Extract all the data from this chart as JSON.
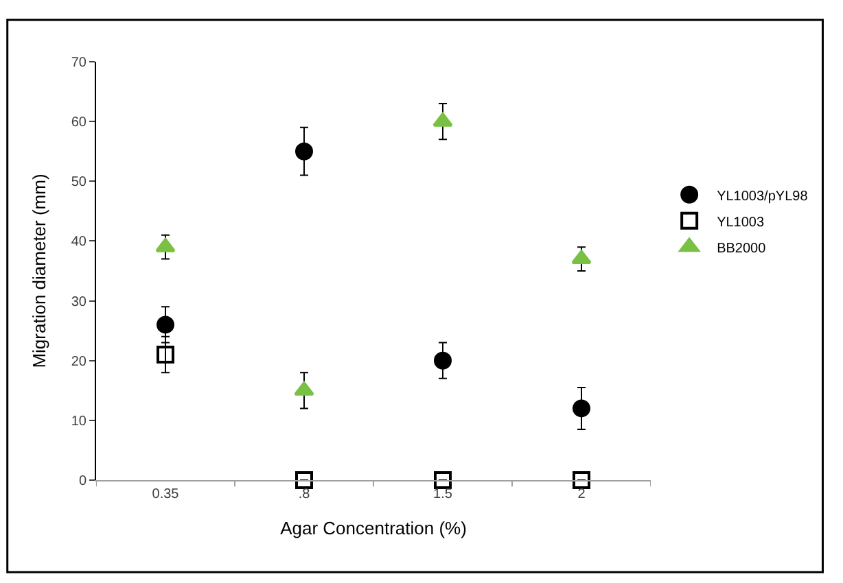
{
  "chart_data": {
    "type": "scatter",
    "xlabel": "Agar Concentration (%)",
    "ylabel": "Migration diameter (mm)",
    "categories": [
      "0.35",
      ".8",
      "1.5",
      "2"
    ],
    "series": [
      {
        "name": "YL1003/pYL98",
        "color": "#000000",
        "marker": "circle",
        "values": [
          26,
          55,
          20,
          12
        ],
        "errors": [
          3,
          4,
          3,
          3.5
        ]
      },
      {
        "name": "YL1003",
        "color": "#000000",
        "marker": "square",
        "values": [
          21,
          0,
          0,
          0
        ],
        "errors": [
          3,
          null,
          null,
          null
        ]
      },
      {
        "name": "BB2000",
        "color": "#7ac143",
        "marker": "triangle",
        "values": [
          39,
          15,
          60,
          37
        ],
        "errors": [
          2,
          3,
          3,
          2
        ]
      }
    ],
    "ylim": [
      0,
      70
    ],
    "yticks": [
      0,
      10,
      20,
      30,
      40,
      50,
      60,
      70
    ],
    "legend": "right"
  }
}
